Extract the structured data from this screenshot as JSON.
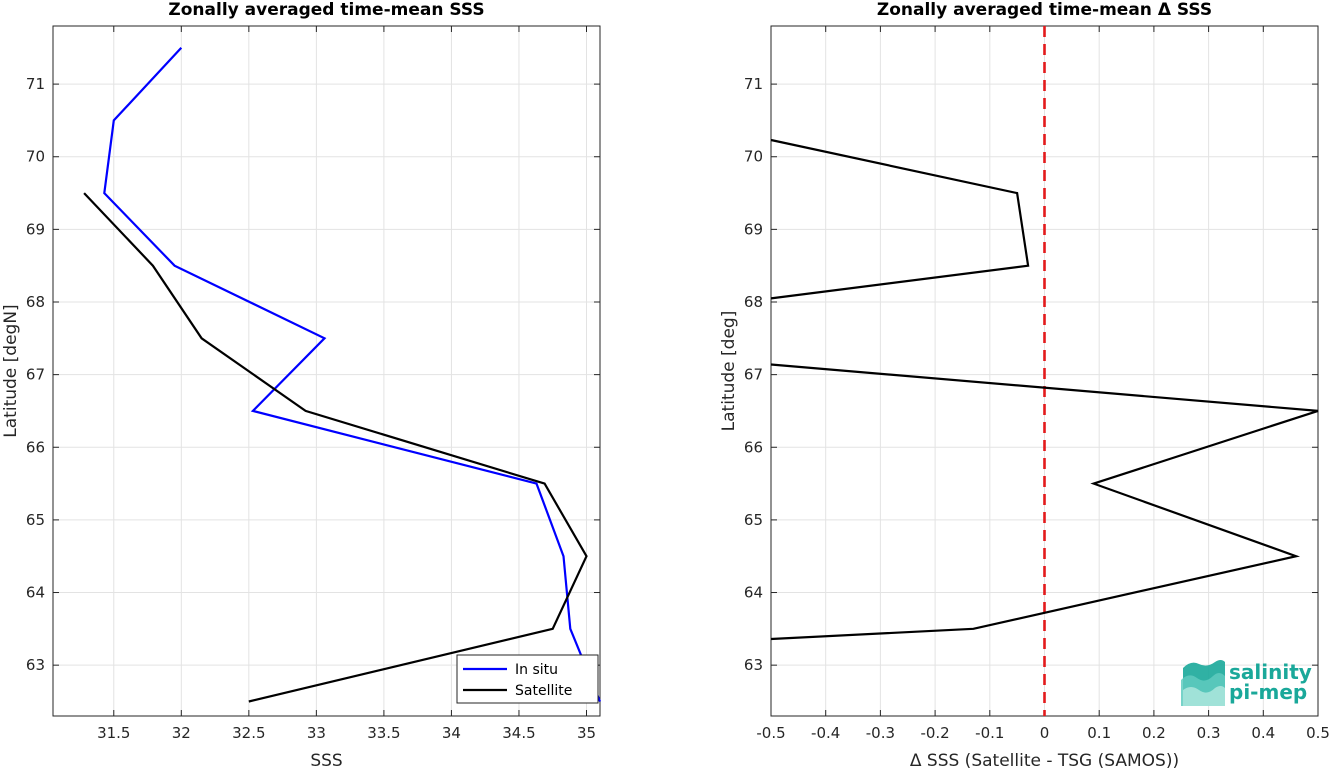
{
  "colors": {
    "in_situ": "#0000ff",
    "satellite": "#000000",
    "zero_line": "#e31a1c",
    "grid": "#e3e3e3",
    "logo": "#1aa89a"
  },
  "logo": {
    "line1": "salinity",
    "line2": "pi-mep"
  },
  "chart_data": [
    {
      "type": "line",
      "title": "Zonally averaged time-mean SSS",
      "xlabel": "SSS",
      "ylabel": "Latitude [degN]",
      "xlim": [
        31.05,
        35.1
      ],
      "ylim": [
        62.3,
        71.8
      ],
      "xticks": [
        31.5,
        32,
        32.5,
        33,
        33.5,
        34,
        34.5,
        35
      ],
      "xtick_labels": [
        "31.5",
        "32",
        "32.5",
        "33",
        "33.5",
        "34",
        "34.5",
        "35"
      ],
      "yticks": [
        63,
        64,
        65,
        66,
        67,
        68,
        69,
        70,
        71
      ],
      "ytick_labels": [
        "63",
        "64",
        "65",
        "66",
        "67",
        "68",
        "69",
        "70",
        "71"
      ],
      "grid": true,
      "legend": {
        "position": "bottom-right",
        "entries": [
          "In situ",
          "Satellite"
        ]
      },
      "series": [
        {
          "name": "In situ",
          "color": "#0000ff",
          "x": [
            32.0,
            31.5,
            31.43,
            31.95,
            33.06,
            32.53,
            34.63,
            34.83,
            34.88,
            35.1
          ],
          "y": [
            71.5,
            70.5,
            69.5,
            68.5,
            67.5,
            66.5,
            65.5,
            64.5,
            63.5,
            62.5
          ]
        },
        {
          "name": "Satellite",
          "color": "#000000",
          "x": [
            31.28,
            31.79,
            32.15,
            32.92,
            34.69,
            35.0,
            34.75,
            32.5
          ],
          "y": [
            69.5,
            68.5,
            67.5,
            66.5,
            65.5,
            64.5,
            63.5,
            62.5
          ]
        }
      ]
    },
    {
      "type": "line",
      "title": "Zonally averaged time-mean Δ SSS",
      "xlabel": "Δ SSS (Satellite - TSG (SAMOS))",
      "ylabel": "Latitude [deg]",
      "xlim": [
        -0.5,
        0.5
      ],
      "ylim": [
        62.3,
        71.8
      ],
      "xticks": [
        -0.5,
        -0.4,
        -0.3,
        -0.2,
        -0.1,
        0,
        0.1,
        0.2,
        0.3,
        0.4,
        0.5
      ],
      "xtick_labels": [
        "-0.5",
        "-0.4",
        "-0.3",
        "-0.2",
        "-0.1",
        "0",
        "0.1",
        "0.2",
        "0.3",
        "0.4",
        "0.5"
      ],
      "yticks": [
        63,
        64,
        65,
        66,
        67,
        68,
        69,
        70,
        71
      ],
      "ytick_labels": [
        "63",
        "64",
        "65",
        "66",
        "67",
        "68",
        "69",
        "70",
        "71"
      ],
      "grid": true,
      "reference_line": {
        "x": 0,
        "style": "dashed",
        "color": "#e31a1c"
      },
      "series": [
        {
          "color": "#000000",
          "x": [
            -0.5,
            -0.05,
            -0.03,
            -0.5
          ],
          "y": [
            70.23,
            69.5,
            68.5,
            68.05
          ]
        },
        {
          "color": "#000000",
          "x": [
            -0.5,
            0.5,
            0.09,
            0.46,
            -0.13,
            -0.5
          ],
          "y": [
            67.14,
            66.5,
            65.5,
            64.5,
            63.5,
            63.36
          ]
        }
      ]
    }
  ]
}
